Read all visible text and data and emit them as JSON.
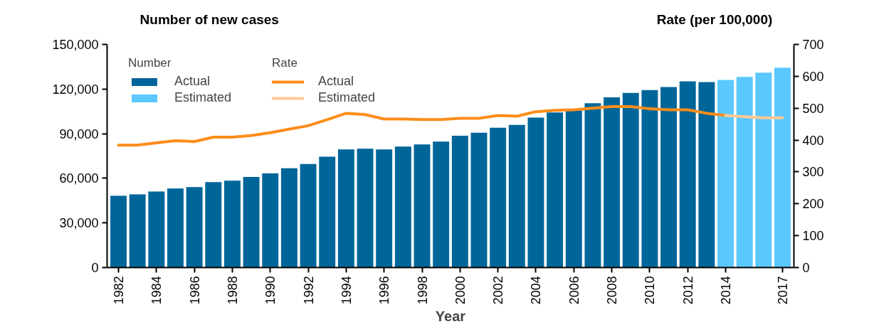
{
  "chart_data": {
    "type": "bar",
    "xlabel": "Year",
    "ylabel": "Number of new cases",
    "y2label": "Rate (per 100,000)",
    "annotations": [
      "Number",
      "Rate"
    ],
    "xlim": [
      1981.4,
      2017.6
    ],
    "xticks": [
      1982,
      1984,
      1986,
      1988,
      1990,
      1992,
      1994,
      1996,
      1998,
      2000,
      2002,
      2004,
      2006,
      2008,
      2010,
      2012,
      2014,
      2017
    ],
    "ylim": [
      0,
      150000
    ],
    "yticks": [
      {
        "value": 0,
        "label": "0"
      },
      {
        "value": 30000,
        "label": "30,000"
      },
      {
        "value": 60000,
        "label": "60,000"
      },
      {
        "value": 90000,
        "label": "90,000"
      },
      {
        "value": 120000,
        "label": "120,000"
      },
      {
        "value": 150000,
        "label": "150,000"
      }
    ],
    "y2lim": [
      0,
      700
    ],
    "y2ticks": [
      0,
      100,
      200,
      300,
      400,
      500,
      600,
      700
    ],
    "grid": false,
    "legend": "top left",
    "series": [
      {
        "name": "Actual",
        "type": "bar",
        "color": "#006699",
        "x": [
          1982,
          1983,
          1984,
          1985,
          1986,
          1987,
          1988,
          1989,
          1990,
          1991,
          1992,
          1993,
          1994,
          1995,
          1996,
          1997,
          1998,
          1999,
          2000,
          2001,
          2002,
          2003,
          2004,
          2005,
          2006,
          2007,
          2008,
          2009,
          2010,
          2011,
          2012,
          2013
        ],
        "values": [
          48200,
          49200,
          51100,
          53100,
          54100,
          57500,
          58400,
          60900,
          63300,
          66700,
          69600,
          74500,
          79400,
          79900,
          79400,
          81300,
          82800,
          84700,
          88600,
          90600,
          94000,
          95900,
          100800,
          104200,
          105700,
          110500,
          114400,
          117400,
          119300,
          121300,
          125100,
          124700
        ]
      },
      {
        "name": "Estimated",
        "type": "bar",
        "color": "#5bc8ff",
        "x": [
          2014,
          2015,
          2016,
          2017
        ],
        "values": [
          126100,
          128100,
          131000,
          134400
        ]
      },
      {
        "name": "Actual",
        "type": "line",
        "axis": "y2",
        "color": "#ff8c1a",
        "x": [
          1982,
          1983,
          1984,
          1985,
          1986,
          1987,
          1988,
          1989,
          1990,
          1991,
          1992,
          1993,
          1994,
          1995,
          1996,
          1997,
          1998,
          1999,
          2000,
          2001,
          2002,
          2003,
          2004,
          2005,
          2006,
          2007,
          2008,
          2009,
          2010,
          2011,
          2012,
          2013,
          2014
        ],
        "values": [
          384,
          384,
          391,
          398,
          395,
          409,
          409,
          414,
          423,
          434,
          445,
          464,
          484,
          480,
          466,
          466,
          464,
          464,
          468,
          468,
          477,
          475,
          489,
          493,
          495,
          500,
          505,
          505,
          498,
          495,
          495,
          484,
          477
        ]
      },
      {
        "name": "Estimated",
        "type": "line",
        "axis": "y2",
        "color": "#ffc994",
        "x": [
          2014,
          2015,
          2016,
          2017
        ],
        "values": [
          477,
          473,
          470,
          470
        ]
      }
    ]
  }
}
